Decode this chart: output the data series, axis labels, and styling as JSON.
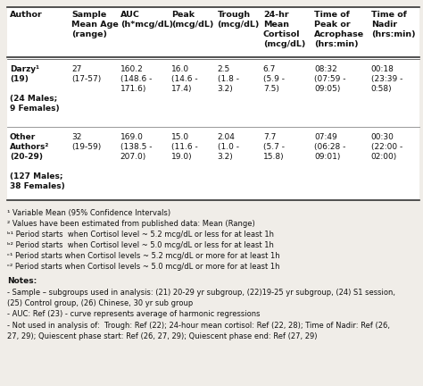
{
  "headers": [
    "Author",
    "Sample\nMean Age\n(range)",
    "AUC\n(h*mcg/dL)",
    "Peak\n(mcg/dL)",
    "Trough\n(mcg/dL)",
    "24-hr\nMean\nCortisol\n(mcg/dL)",
    "Time of\nPeak or\nAcrophase\n(hrs:min)",
    "Time of\nNadir\n(hrs:min)"
  ],
  "row1_author": "Darzy¹\n(19)\n\n(24 Males;\n9 Females)",
  "row1_data": [
    "27\n(17-57)",
    "160.2\n(148.6 -\n171.6)",
    "16.0\n(14.6 -\n17.4)",
    "2.5\n(1.8 -\n3.2)",
    "6.7\n(5.9 -\n7.5)",
    "08:32\n(07:59 -\n09:05)",
    "00:18\n(23:39 -\n0:58)"
  ],
  "row2_author": "Other\nAuthors²\n(20-29)\n\n(127 Males;\n38 Females)",
  "row2_data": [
    "32\n(19-59)",
    "169.0\n(138.5 -\n207.0)",
    "15.0\n(11.6 -\n19.0)",
    "2.04\n(1.0 -\n3.2)",
    "7.7\n(5.7 -\n15.8)",
    "07:49\n(06:28 -\n09:01)",
    "00:30\n(22:00 -\n02:00)"
  ],
  "footnote1": "¹ Variable Mean (95% Confidence Intervals)",
  "footnote2": "² Values have been estimated from published data: Mean (Range)",
  "footnote3": "ᵇ¹ Period starts  when Cortisol level ~ 5.2 mcg/dL or less for at least 1h",
  "footnote4": "ᵇ² Period starts  when Cortisol level ~ 5.0 mcg/dL or less for at least 1h",
  "footnote5": "ᶜ¹ Period starts when Cortisol levels ~ 5.2 mcg/dL or more for at least 1h",
  "footnote6": "ᶜ² Period starts when Cortisol levels ~ 5.0 mcg/dL or more for at least 1h",
  "notes_title": "Notes:",
  "note1": "- Sample – subgroups used in analysis: (21) 20-29 yr subgroup, (22)19-25 yr subgroup, (24) S1 session,\n(25) Control group, (26) Chinese, 30 yr sub group",
  "note2": "- AUC: Ref (23) - curve represents average of harmonic regressions",
  "note3": "- Not used in analysis of:  Trough: Ref (22); 24-hour mean cortisol: Ref (22, 28); Time of Nadir: Ref (26,\n27, 29); Quiescent phase start: Ref (26, 27, 29); Quiescent phase end: Ref (27, 29)",
  "note1_supers": [
    [
      26,
      "(21)"
    ],
    [
      54,
      "(22)"
    ],
    [
      80,
      "(24)"
    ]
  ],
  "bg_color": "#f0ede8",
  "table_bg": "#ffffff",
  "fs_header": 6.8,
  "fs_cell": 6.5,
  "fs_footnote": 6.0,
  "fs_notes": 6.0,
  "col_widths_rel": [
    1.15,
    0.9,
    0.95,
    0.85,
    0.85,
    0.95,
    1.05,
    0.95
  ]
}
